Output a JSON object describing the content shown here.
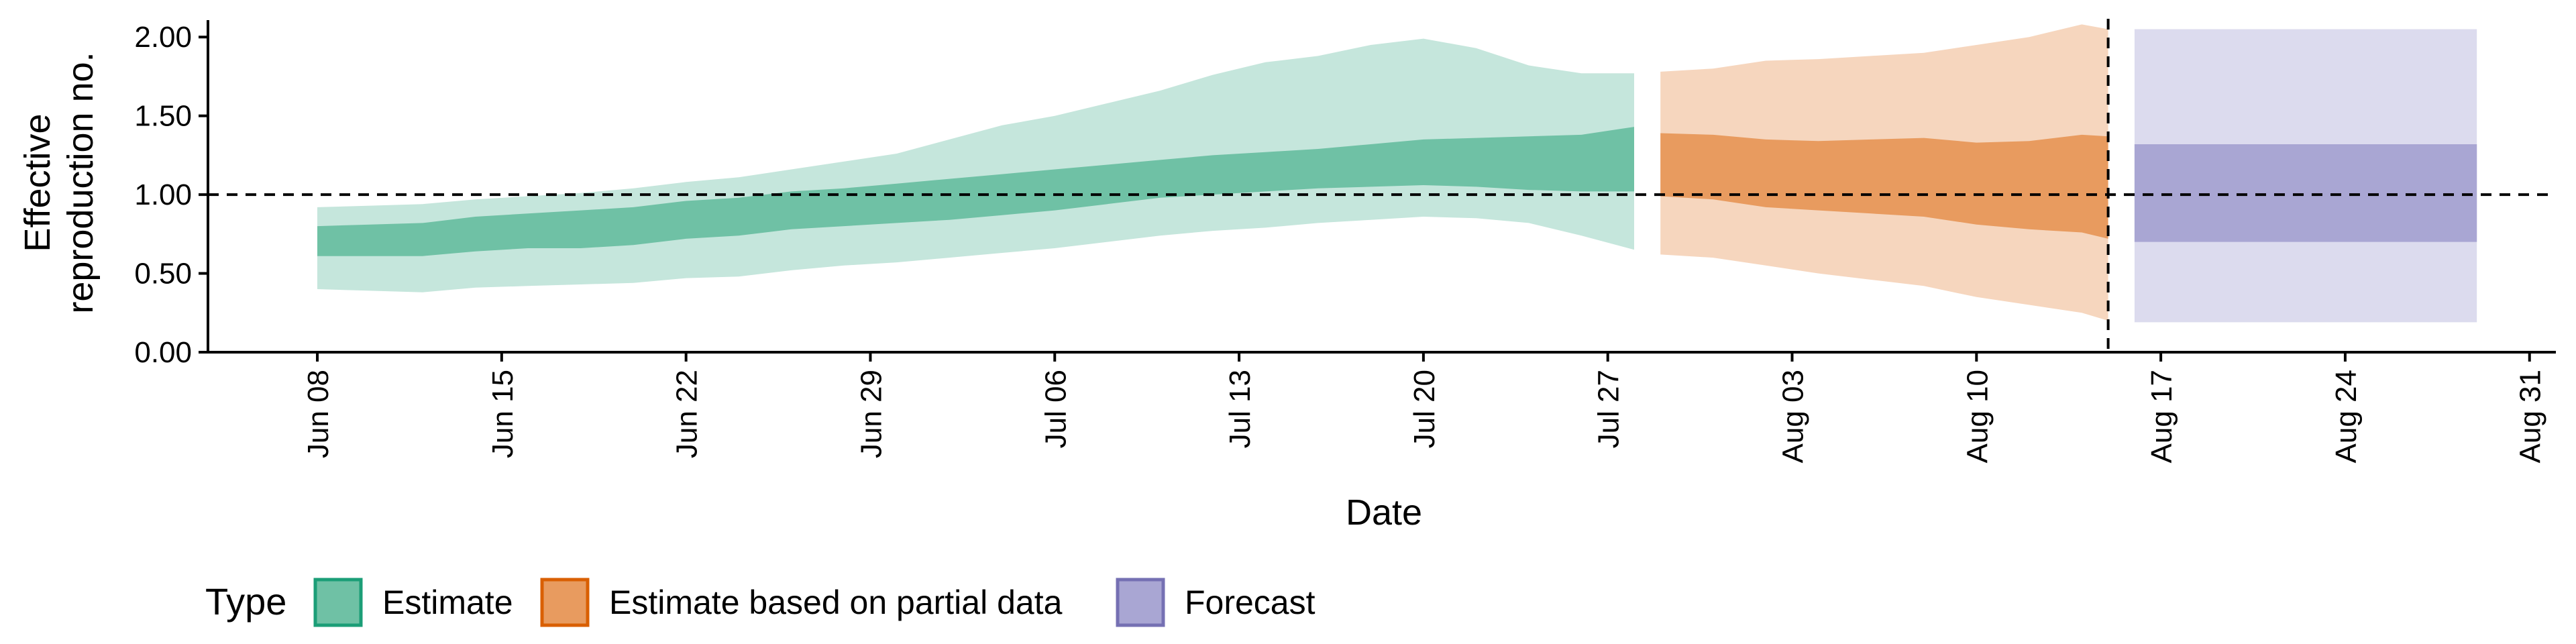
{
  "chart_data": {
    "type": "area",
    "xlabel": "Date",
    "ylabel": [
      "Effective",
      "reproduction no."
    ],
    "ylim": [
      0,
      2.15
    ],
    "y_ticks": [
      0,
      0.5,
      1.0,
      1.5,
      2.0
    ],
    "y_tick_labels": [
      "0.00",
      "0.50",
      "1.00",
      "1.50",
      "2.00"
    ],
    "x_range": [
      "2021-06-04",
      "2021-09-01"
    ],
    "x_ticks": [
      "2021-06-08",
      "2021-06-15",
      "2021-06-22",
      "2021-06-29",
      "2021-07-06",
      "2021-07-13",
      "2021-07-20",
      "2021-07-27",
      "2021-08-03",
      "2021-08-10",
      "2021-08-17",
      "2021-08-24",
      "2021-08-31"
    ],
    "x_tick_labels": [
      "Jun 08",
      "Jun 15",
      "Jun 22",
      "Jun 29",
      "Jul 06",
      "Jul 13",
      "Jul 20",
      "Jul 27",
      "Aug 03",
      "Aug 10",
      "Aug 17",
      "Aug 24",
      "Aug 31"
    ],
    "reference_line_y": 1.0,
    "reference_line_x": "2021-08-15",
    "legend": {
      "title": "Type",
      "placement": "bottom-left"
    },
    "series": [
      {
        "name": "Estimate",
        "color_inner": "#6fc1a5",
        "color_outer": "#c5e6dc",
        "legend_fill": "#6fc1a5",
        "legend_stroke": "#1b9e77",
        "x": [
          "2021-06-08",
          "2021-06-10",
          "2021-06-12",
          "2021-06-14",
          "2021-06-16",
          "2021-06-18",
          "2021-06-20",
          "2021-06-22",
          "2021-06-24",
          "2021-06-26",
          "2021-06-28",
          "2021-06-30",
          "2021-07-02",
          "2021-07-04",
          "2021-07-06",
          "2021-07-08",
          "2021-07-10",
          "2021-07-12",
          "2021-07-14",
          "2021-07-16",
          "2021-07-18",
          "2021-07-20",
          "2021-07-22",
          "2021-07-24",
          "2021-07-26",
          "2021-07-28"
        ],
        "lower90": [
          0.4,
          0.39,
          0.38,
          0.41,
          0.42,
          0.43,
          0.44,
          0.47,
          0.48,
          0.52,
          0.55,
          0.57,
          0.6,
          0.63,
          0.66,
          0.7,
          0.74,
          0.77,
          0.79,
          0.82,
          0.84,
          0.86,
          0.85,
          0.82,
          0.74,
          0.65
        ],
        "lower50": [
          0.61,
          0.61,
          0.61,
          0.64,
          0.66,
          0.66,
          0.68,
          0.72,
          0.74,
          0.78,
          0.8,
          0.82,
          0.84,
          0.87,
          0.9,
          0.94,
          0.98,
          1.0,
          1.02,
          1.04,
          1.05,
          1.06,
          1.05,
          1.03,
          1.02,
          1.02
        ],
        "upper50": [
          0.8,
          0.81,
          0.82,
          0.86,
          0.88,
          0.9,
          0.92,
          0.96,
          0.98,
          1.02,
          1.04,
          1.07,
          1.1,
          1.13,
          1.16,
          1.19,
          1.22,
          1.25,
          1.27,
          1.29,
          1.32,
          1.35,
          1.36,
          1.37,
          1.38,
          1.43
        ],
        "upper90": [
          0.92,
          0.93,
          0.94,
          0.97,
          0.99,
          1.01,
          1.04,
          1.08,
          1.11,
          1.16,
          1.21,
          1.26,
          1.35,
          1.44,
          1.5,
          1.58,
          1.66,
          1.76,
          1.84,
          1.88,
          1.95,
          1.99,
          1.93,
          1.82,
          1.77,
          1.77
        ]
      },
      {
        "name": "Estimate based on partial data",
        "color_inner": "#e89b5f",
        "color_outer": "#f6d6be",
        "legend_fill": "#e89b5f",
        "legend_stroke": "#d95f02",
        "x": [
          "2021-07-29",
          "2021-07-31",
          "2021-08-02",
          "2021-08-04",
          "2021-08-06",
          "2021-08-08",
          "2021-08-10",
          "2021-08-12",
          "2021-08-14",
          "2021-08-15"
        ],
        "lower90": [
          0.62,
          0.6,
          0.55,
          0.5,
          0.46,
          0.42,
          0.35,
          0.3,
          0.25,
          0.2
        ],
        "lower50": [
          0.99,
          0.97,
          0.92,
          0.9,
          0.88,
          0.86,
          0.81,
          0.78,
          0.76,
          0.72
        ],
        "upper50": [
          1.39,
          1.38,
          1.35,
          1.34,
          1.35,
          1.36,
          1.33,
          1.34,
          1.38,
          1.37
        ],
        "upper90": [
          1.78,
          1.8,
          1.85,
          1.86,
          1.88,
          1.9,
          1.95,
          2.0,
          2.08,
          2.05
        ]
      },
      {
        "name": "Forecast",
        "color_inner": "#a9a6d3",
        "color_outer": "#dcdbee",
        "legend_fill": "#a9a6d3",
        "legend_stroke": "#7570b3",
        "x": [
          "2021-08-16",
          "2021-08-29"
        ],
        "lower90": [
          0.19,
          0.19
        ],
        "lower50": [
          0.7,
          0.7
        ],
        "upper50": [
          1.32,
          1.32
        ],
        "upper90": [
          2.05,
          2.05
        ]
      }
    ]
  }
}
